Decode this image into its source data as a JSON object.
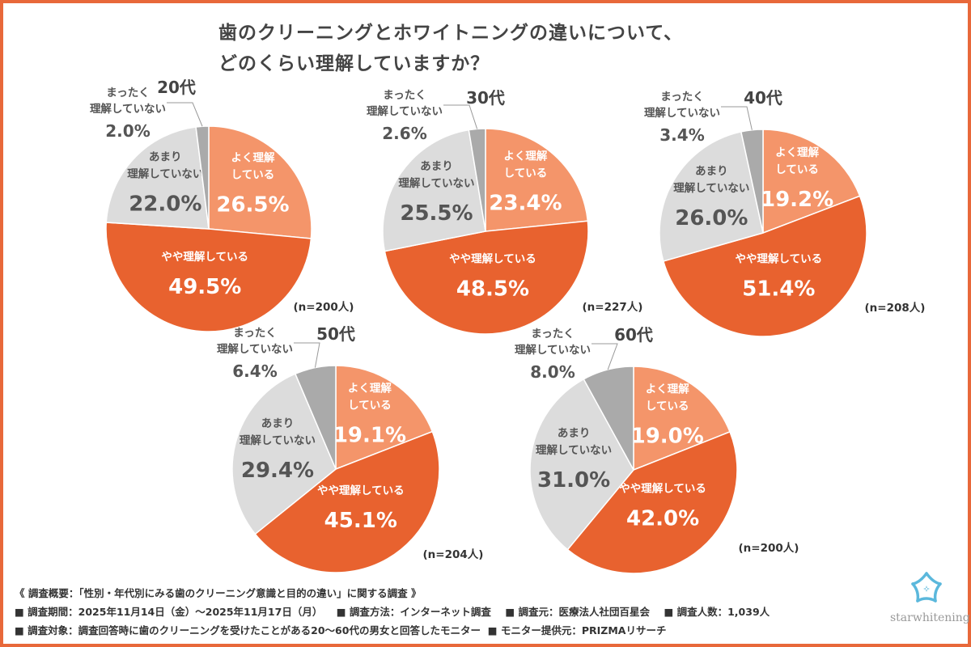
{
  "title": [
    "歯のクリーニングとホワイトニングの違いについて、",
    "どのくらい理解していますか？"
  ],
  "colors": {
    "よく理解している": "#F4956A",
    "やや理解している": "#E8622F",
    "あまり理解していない": "#DCDCDC",
    "まったく理解していない": "#AAAAAA",
    "frame": "#E8683A"
  },
  "chart_data": [
    {
      "type": "pie",
      "title": "20代",
      "n_label": "(n=200人)",
      "labels": [
        "よく理解している",
        "やや理解している",
        "あまり理解していない",
        "まったく理解していない"
      ],
      "values": [
        26.5,
        49.5,
        22.0,
        2.0
      ]
    },
    {
      "type": "pie",
      "title": "30代",
      "n_label": "(n=227人)",
      "labels": [
        "よく理解している",
        "やや理解している",
        "あまり理解していない",
        "まったく理解していない"
      ],
      "values": [
        23.4,
        48.5,
        25.5,
        2.6
      ]
    },
    {
      "type": "pie",
      "title": "40代",
      "n_label": "(n=208人)",
      "labels": [
        "よく理解している",
        "やや理解している",
        "あまり理解していない",
        "まったく理解していない"
      ],
      "values": [
        19.2,
        51.4,
        26.0,
        3.4
      ]
    },
    {
      "type": "pie",
      "title": "50代",
      "n_label": "(n=204人)",
      "labels": [
        "よく理解している",
        "やや理解している",
        "あまり理解していない",
        "まったく理解していない"
      ],
      "values": [
        19.1,
        45.1,
        29.4,
        6.4
      ]
    },
    {
      "type": "pie",
      "title": "60代",
      "n_label": "(n=200人)",
      "labels": [
        "よく理解している",
        "やや理解している",
        "あまり理解していない",
        "まったく理解していない"
      ],
      "values": [
        19.0,
        42.0,
        31.0,
        8.0
      ]
    }
  ],
  "slice_label_lines": [
    [
      "よく理解",
      "している"
    ],
    [
      "やや理解している"
    ],
    [
      "あまり",
      "理解していない"
    ],
    [
      "まったく",
      "理解していない"
    ]
  ],
  "footer": {
    "line1": "《 調査概要：「性別・年代別にみる歯のクリーニング意識と目的の違い」に関する調査 》",
    "line2": [
      "■ 調査期間：2025年11月14日（金）～2025年11月17日（月）",
      "■ 調査方法：インターネット調査",
      "■ 調査元：医療法人社団百星会",
      "■ 調査人数：1,039人"
    ],
    "line3": [
      "■ 調査対象：調査回答時に歯のクリーニングを受けたことがある20～60代の男女と回答したモニター",
      "■ モニター提供元：PRIZMAリサーチ"
    ]
  },
  "logo": {
    "text": "starwhitening",
    "icon": "star-flower-icon"
  }
}
